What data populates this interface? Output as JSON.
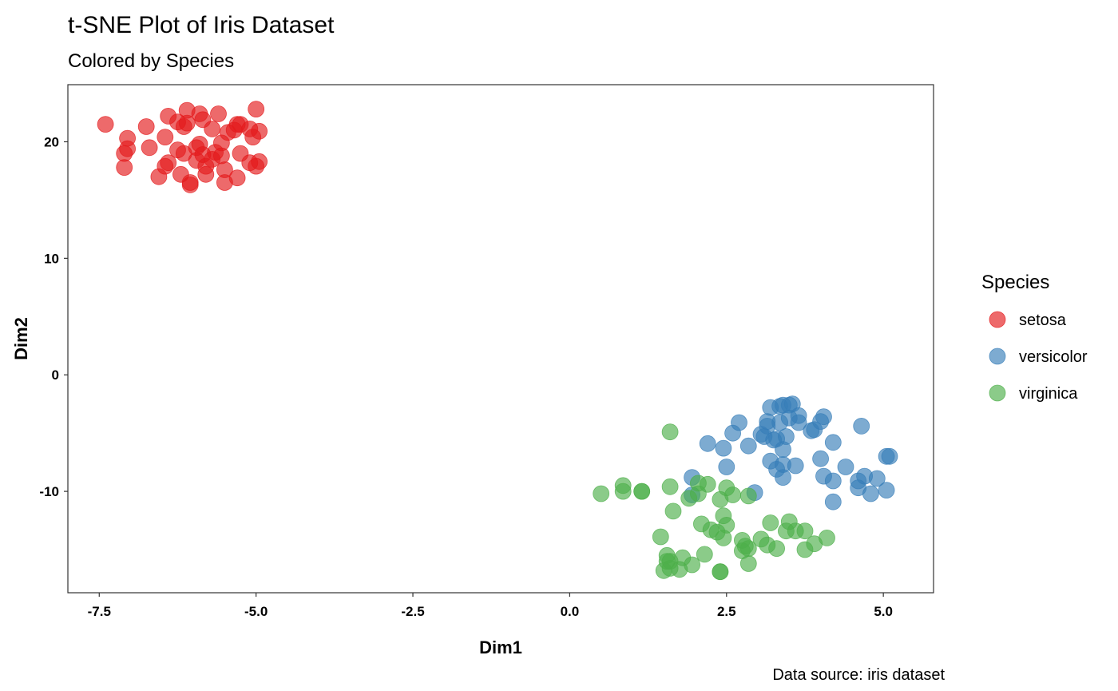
{
  "chart_data": {
    "type": "scatter",
    "title": "t-SNE Plot of Iris Dataset",
    "subtitle": "Colored by Species",
    "xlabel": "Dim1",
    "ylabel": "Dim2",
    "caption": "Data source: iris dataset",
    "xlim": [
      -8.0,
      5.8
    ],
    "ylim": [
      -18.7,
      24.9
    ],
    "x_ticks": [
      -7.5,
      -5.0,
      -2.5,
      0.0,
      2.5,
      5.0
    ],
    "x_tick_labels": [
      "-7.5",
      "-5.0",
      "-2.5",
      "0.0",
      "2.5",
      "5.0"
    ],
    "y_ticks": [
      20,
      10,
      0,
      -10
    ],
    "y_tick_labels": [
      "20",
      "10",
      "0",
      "-10"
    ],
    "grid": false,
    "legend": {
      "title": "Species",
      "placement": "right"
    },
    "series": [
      {
        "name": "setosa",
        "color": "#E41A1C",
        "points": [
          [
            -7.4,
            21.5
          ],
          [
            -7.05,
            20.3
          ],
          [
            -7.1,
            19.0
          ],
          [
            -7.05,
            19.4
          ],
          [
            -7.1,
            17.8
          ],
          [
            -6.75,
            21.3
          ],
          [
            -6.7,
            19.5
          ],
          [
            -6.55,
            17.0
          ],
          [
            -6.45,
            20.4
          ],
          [
            -6.45,
            17.9
          ],
          [
            -6.4,
            18.2
          ],
          [
            -6.4,
            22.2
          ],
          [
            -6.25,
            21.7
          ],
          [
            -6.25,
            19.3
          ],
          [
            -6.2,
            17.2
          ],
          [
            -6.15,
            21.3
          ],
          [
            -6.15,
            19.0
          ],
          [
            -6.1,
            21.6
          ],
          [
            -6.1,
            22.7
          ],
          [
            -6.05,
            16.5
          ],
          [
            -6.05,
            16.3
          ],
          [
            -5.95,
            19.5
          ],
          [
            -5.9,
            19.8
          ],
          [
            -5.9,
            22.4
          ],
          [
            -5.85,
            21.9
          ],
          [
            -5.85,
            18.9
          ],
          [
            -5.8,
            17.9
          ],
          [
            -5.8,
            17.2
          ],
          [
            -5.7,
            18.5
          ],
          [
            -5.7,
            21.1
          ],
          [
            -5.65,
            19.1
          ],
          [
            -5.6,
            22.4
          ],
          [
            -5.55,
            18.8
          ],
          [
            -5.55,
            19.9
          ],
          [
            -5.5,
            16.5
          ],
          [
            -5.5,
            17.6
          ],
          [
            -5.45,
            20.8
          ],
          [
            -5.35,
            21.0
          ],
          [
            -5.3,
            16.9
          ],
          [
            -5.3,
            21.5
          ],
          [
            -5.25,
            21.5
          ],
          [
            -5.25,
            19.0
          ],
          [
            -5.1,
            18.2
          ],
          [
            -5.1,
            21.1
          ],
          [
            -5.05,
            20.4
          ],
          [
            -5.0,
            22.8
          ],
          [
            -5.0,
            17.9
          ],
          [
            -4.95,
            20.9
          ],
          [
            -4.95,
            18.3
          ],
          [
            -5.95,
            18.4
          ]
        ]
      },
      {
        "name": "versicolor",
        "color": "#377EB8",
        "points": [
          [
            1.95,
            -8.8
          ],
          [
            1.95,
            -10.3
          ],
          [
            2.2,
            -5.9
          ],
          [
            2.45,
            -6.3
          ],
          [
            2.5,
            -7.9
          ],
          [
            2.6,
            -5.0
          ],
          [
            2.7,
            -4.1
          ],
          [
            2.85,
            -6.1
          ],
          [
            2.95,
            -10.1
          ],
          [
            3.05,
            -5.1
          ],
          [
            3.1,
            -5.3
          ],
          [
            3.15,
            -4.4
          ],
          [
            3.15,
            -4.0
          ],
          [
            3.2,
            -2.8
          ],
          [
            3.2,
            -7.4
          ],
          [
            3.25,
            -5.6
          ],
          [
            3.3,
            -8.1
          ],
          [
            3.3,
            -5.5
          ],
          [
            3.35,
            -4.1
          ],
          [
            3.35,
            -2.7
          ],
          [
            3.4,
            -8.8
          ],
          [
            3.4,
            -7.7
          ],
          [
            3.4,
            -6.4
          ],
          [
            3.4,
            -2.6
          ],
          [
            3.45,
            -5.3
          ],
          [
            3.5,
            -2.6
          ],
          [
            3.5,
            -3.7
          ],
          [
            3.55,
            -2.5
          ],
          [
            3.6,
            -7.8
          ],
          [
            3.65,
            -3.5
          ],
          [
            3.65,
            -4.1
          ],
          [
            3.85,
            -4.8
          ],
          [
            3.9,
            -4.7
          ],
          [
            4.0,
            -4.0
          ],
          [
            4.0,
            -7.2
          ],
          [
            4.05,
            -3.6
          ],
          [
            4.05,
            -8.7
          ],
          [
            4.2,
            -5.8
          ],
          [
            4.2,
            -9.1
          ],
          [
            4.2,
            -10.9
          ],
          [
            4.4,
            -7.9
          ],
          [
            4.6,
            -9.1
          ],
          [
            4.6,
            -9.7
          ],
          [
            4.65,
            -4.4
          ],
          [
            4.7,
            -8.7
          ],
          [
            4.8,
            -10.2
          ],
          [
            4.9,
            -8.9
          ],
          [
            5.05,
            -9.9
          ],
          [
            5.05,
            -7.0
          ],
          [
            5.1,
            -7.0
          ]
        ]
      },
      {
        "name": "virginica",
        "color": "#4DAF4A",
        "points": [
          [
            0.5,
            -10.2
          ],
          [
            0.85,
            -9.5
          ],
          [
            0.85,
            -10.0
          ],
          [
            1.15,
            -10.0
          ],
          [
            1.15,
            -10.0
          ],
          [
            1.45,
            -13.9
          ],
          [
            1.5,
            -16.8
          ],
          [
            1.55,
            -15.5
          ],
          [
            1.6,
            -16.0
          ],
          [
            1.6,
            -16.6
          ],
          [
            1.6,
            -9.6
          ],
          [
            1.6,
            -4.9
          ],
          [
            1.65,
            -11.7
          ],
          [
            1.75,
            -16.7
          ],
          [
            1.8,
            -15.7
          ],
          [
            1.9,
            -10.6
          ],
          [
            1.95,
            -16.3
          ],
          [
            2.05,
            -10.2
          ],
          [
            2.1,
            -12.8
          ],
          [
            2.15,
            -15.4
          ],
          [
            2.2,
            -9.4
          ],
          [
            2.25,
            -13.3
          ],
          [
            2.35,
            -13.5
          ],
          [
            2.4,
            -10.7
          ],
          [
            2.4,
            -16.9
          ],
          [
            2.45,
            -14.0
          ],
          [
            2.45,
            -12.1
          ],
          [
            2.5,
            -12.9
          ],
          [
            2.5,
            -9.7
          ],
          [
            2.6,
            -10.3
          ],
          [
            2.75,
            -14.2
          ],
          [
            2.75,
            -15.1
          ],
          [
            2.8,
            -14.7
          ],
          [
            2.85,
            -16.2
          ],
          [
            2.85,
            -10.4
          ],
          [
            3.05,
            -14.1
          ],
          [
            3.15,
            -14.6
          ],
          [
            3.2,
            -12.7
          ],
          [
            3.3,
            -14.9
          ],
          [
            3.45,
            -13.4
          ],
          [
            3.5,
            -12.6
          ],
          [
            3.6,
            -13.4
          ],
          [
            3.75,
            -13.4
          ],
          [
            3.75,
            -15.0
          ],
          [
            3.9,
            -14.5
          ],
          [
            4.1,
            -14.0
          ],
          [
            2.4,
            -16.9
          ],
          [
            1.55,
            -16.0
          ],
          [
            2.05,
            -9.3
          ],
          [
            2.85,
            -14.9
          ]
        ]
      }
    ]
  }
}
